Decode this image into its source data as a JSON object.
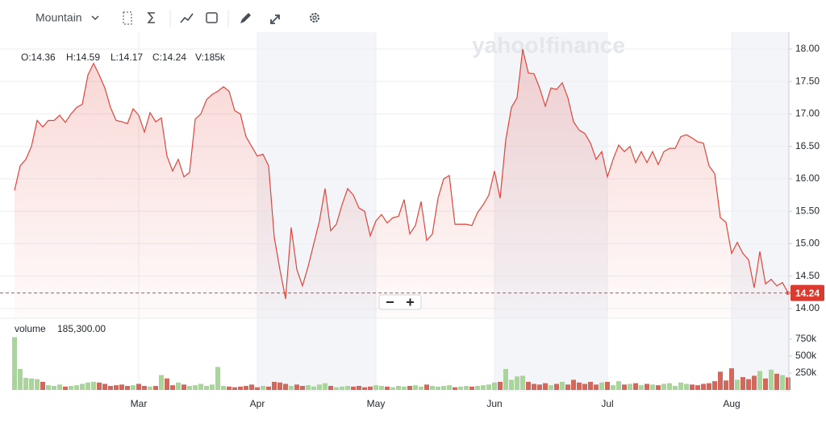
{
  "toolbar": {
    "chart_style": "Mountain"
  },
  "chart_data": {
    "type": "area",
    "watermark": "yahoo!finance",
    "ohlc_legend": [
      "O:14.36",
      "H:14.59",
      "L:14.17",
      "C:14.24",
      "V:185k"
    ],
    "volume_legend": {
      "label": "volume",
      "value": "185,300.00"
    },
    "color": "#e0463c",
    "categories": [
      null,
      null,
      null,
      null,
      null,
      null,
      null,
      null,
      null,
      null,
      null,
      null,
      null,
      null,
      null,
      null,
      null,
      null,
      null,
      null,
      null,
      null,
      "Mar",
      null,
      null,
      null,
      null,
      null,
      null,
      null,
      null,
      null,
      null,
      null,
      null,
      null,
      null,
      null,
      null,
      null,
      null,
      null,
      null,
      "Apr",
      null,
      null,
      null,
      null,
      null,
      null,
      null,
      null,
      null,
      null,
      null,
      null,
      null,
      null,
      null,
      null,
      null,
      null,
      null,
      null,
      "May",
      null,
      null,
      null,
      null,
      null,
      null,
      null,
      null,
      null,
      null,
      null,
      null,
      null,
      null,
      null,
      null,
      null,
      null,
      null,
      null,
      "Jun",
      null,
      null,
      null,
      null,
      null,
      null,
      null,
      null,
      null,
      null,
      null,
      null,
      null,
      null,
      null,
      null,
      null,
      null,
      null,
      "Jul",
      null,
      null,
      null,
      null,
      null,
      null,
      null,
      null,
      null,
      null,
      null,
      null,
      null,
      null,
      null,
      null,
      null,
      null,
      null,
      null,
      null,
      "Aug",
      null,
      null,
      null,
      null,
      null,
      null,
      null,
      null,
      null,
      null
    ],
    "values": [
      15.82,
      16.2,
      16.3,
      16.5,
      16.9,
      16.8,
      16.9,
      16.9,
      16.98,
      16.87,
      17.0,
      17.1,
      17.15,
      17.6,
      17.78,
      17.6,
      17.4,
      17.1,
      16.9,
      16.88,
      16.85,
      17.08,
      16.98,
      16.72,
      17.02,
      16.88,
      16.94,
      16.35,
      16.12,
      16.3,
      16.03,
      16.1,
      16.92,
      17.0,
      17.22,
      17.3,
      17.35,
      17.42,
      17.35,
      17.05,
      17.0,
      16.65,
      16.5,
      16.35,
      16.38,
      16.2,
      15.1,
      14.6,
      14.15,
      15.25,
      14.6,
      14.35,
      14.65,
      15.0,
      15.35,
      15.85,
      15.2,
      15.3,
      15.6,
      15.85,
      15.75,
      15.55,
      15.5,
      15.12,
      15.35,
      15.45,
      15.32,
      15.4,
      15.42,
      15.68,
      15.15,
      15.28,
      15.65,
      15.05,
      15.15,
      15.7,
      16.0,
      16.05,
      15.3,
      15.3,
      15.3,
      15.28,
      15.48,
      15.6,
      15.75,
      16.12,
      15.7,
      16.6,
      17.1,
      17.25,
      18.0,
      17.63,
      17.62,
      17.4,
      17.12,
      17.4,
      17.38,
      17.48,
      17.25,
      16.88,
      16.75,
      16.7,
      16.55,
      16.3,
      16.42,
      16.03,
      16.3,
      16.52,
      16.42,
      16.5,
      16.25,
      16.42,
      16.25,
      16.42,
      16.22,
      16.42,
      16.47,
      16.47,
      16.65,
      16.68,
      16.63,
      16.57,
      16.55,
      16.2,
      16.08,
      15.4,
      15.33,
      14.85,
      15.02,
      14.85,
      14.75,
      14.32,
      14.88,
      14.38,
      14.45,
      14.35,
      14.4,
      14.24
    ],
    "ylim": [
      13.85,
      18.26
    ],
    "yticks": [
      {
        "value": 14,
        "label": "14.00"
      },
      {
        "value": 14.5,
        "label": "14.50"
      },
      {
        "value": 15,
        "label": "15.00"
      },
      {
        "value": 15.5,
        "label": "15.50"
      },
      {
        "value": 16,
        "label": "16.00"
      },
      {
        "value": 16.5,
        "label": "16.50"
      },
      {
        "value": 17,
        "label": "17.00"
      },
      {
        "value": 17.5,
        "label": "17.50"
      },
      {
        "value": 18,
        "label": "18.00"
      }
    ],
    "grid": true,
    "last_price": 14.24,
    "volume": {
      "up_color": "#a9d49c",
      "down_color": "#d2685c",
      "ylim": [
        0,
        1000000
      ],
      "yticks": [
        {
          "value": 250000,
          "label": "250k"
        },
        {
          "value": 500000,
          "label": "500k"
        },
        {
          "value": 750000,
          "label": "750k"
        }
      ],
      "values": [
        780000,
        310000,
        180000,
        170000,
        160000,
        120000,
        70000,
        60000,
        80000,
        50000,
        60000,
        70000,
        90000,
        110000,
        120000,
        110000,
        90000,
        60000,
        70000,
        80000,
        60000,
        70000,
        90000,
        60000,
        50000,
        60000,
        220000,
        170000,
        70000,
        110000,
        80000,
        60000,
        70000,
        90000,
        60000,
        80000,
        340000,
        60000,
        50000,
        40000,
        50000,
        60000,
        80000,
        40000,
        60000,
        50000,
        120000,
        110000,
        90000,
        60000,
        80000,
        60000,
        70000,
        50000,
        80000,
        100000,
        60000,
        40000,
        50000,
        60000,
        50000,
        60000,
        40000,
        50000,
        70000,
        60000,
        50000,
        40000,
        60000,
        50000,
        60000,
        70000,
        50000,
        80000,
        60000,
        50000,
        60000,
        70000,
        40000,
        50000,
        60000,
        50000,
        60000,
        70000,
        80000,
        110000,
        120000,
        310000,
        150000,
        200000,
        210000,
        120000,
        90000,
        80000,
        100000,
        70000,
        90000,
        120000,
        80000,
        150000,
        110000,
        90000,
        120000,
        80000,
        110000,
        120000,
        70000,
        130000,
        80000,
        90000,
        100000,
        70000,
        90000,
        80000,
        70000,
        90000,
        100000,
        60000,
        110000,
        90000,
        80000,
        70000,
        90000,
        100000,
        130000,
        270000,
        140000,
        320000,
        150000,
        190000,
        160000,
        210000,
        280000,
        170000,
        300000,
        240000,
        220000,
        185300
      ]
    }
  }
}
